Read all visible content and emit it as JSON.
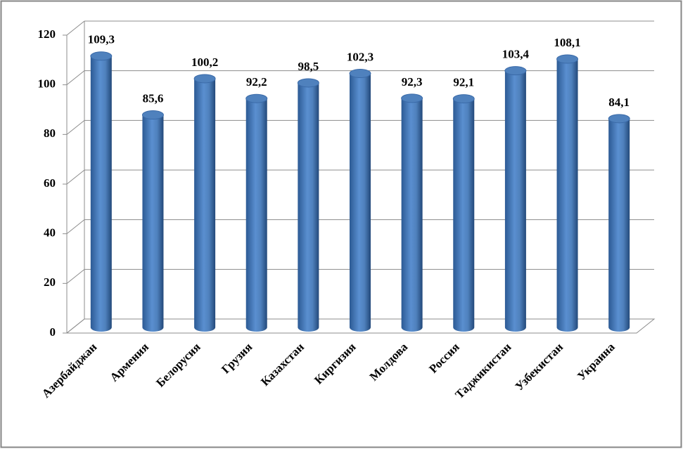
{
  "chart_data": {
    "type": "bar",
    "categories": [
      "Азербайджан",
      "Армения",
      "Белорусия",
      "Грузия",
      "Казахстан",
      "Киргизия",
      "Молдова",
      "Россия",
      "Таджикистан",
      "Узбекистан",
      "Украина"
    ],
    "values": [
      109.3,
      85.6,
      100.2,
      92.2,
      98.5,
      102.3,
      92.3,
      92.1,
      103.4,
      108.1,
      84.1
    ],
    "value_labels": [
      "109,3",
      "85,6",
      "100,2",
      "92,2",
      "98,5",
      "102,3",
      "92,3",
      "92,1",
      "103,4",
      "108,1",
      "84,1"
    ],
    "color": "#4f81bd",
    "ylim": [
      0,
      120
    ],
    "yticks": [
      0,
      20,
      40,
      60,
      80,
      100,
      120
    ],
    "grid": true
  }
}
